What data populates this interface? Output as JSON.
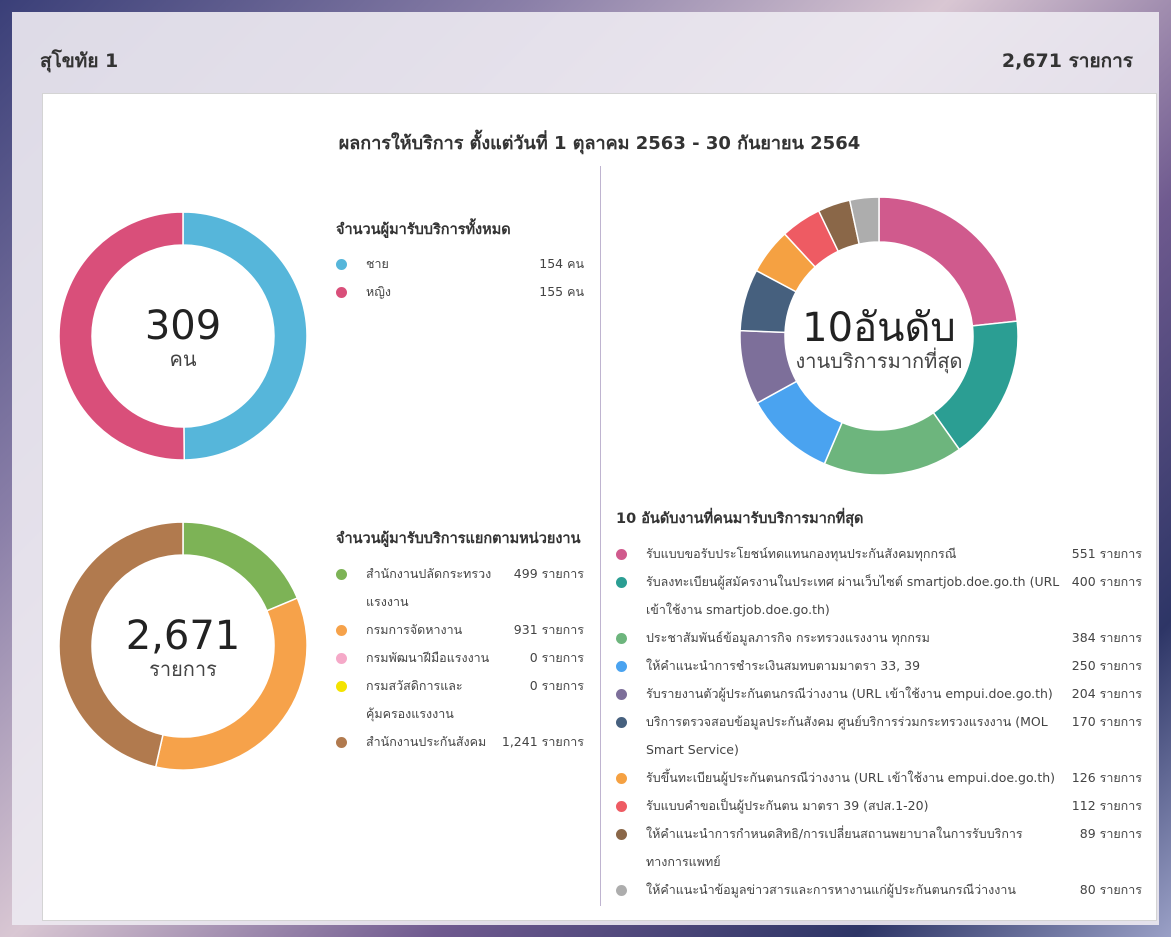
{
  "header": {
    "title": "สุโขทัย 1",
    "total": "2,671 รายการ"
  },
  "main_title": "ผลการให้บริการ ตั้งแต่วันที่ 1 ตุลาคม 2563 - 30 กันยายน 2564",
  "gender_chart": {
    "center_value": "309",
    "center_unit": "คน",
    "section_title": "จำนวนผู้มารับบริการทั้งหมด",
    "items": [
      {
        "label": "ชาย",
        "value": 154,
        "value_text": "154 คน",
        "color": "#56b6da"
      },
      {
        "label": "หญิง",
        "value": 155,
        "value_text": "155 คน",
        "color": "#d94f7a"
      }
    ]
  },
  "agency_chart": {
    "center_value": "2,671",
    "center_unit": "รายการ",
    "section_title": "จำนวนผู้มารับบริการแยกตามหน่วยงาน",
    "items": [
      {
        "label": "สำนักงานปลัดกระทรวงแรงงาน",
        "value": 499,
        "value_text": "499 รายการ",
        "color": "#7db356"
      },
      {
        "label": "กรมการจัดหางาน",
        "value": 931,
        "value_text": "931 รายการ",
        "color": "#f6a24a"
      },
      {
        "label": "กรมพัฒนาฝีมือแรงงาน",
        "value": 0,
        "value_text": "0 รายการ",
        "color": "#f5a9c8"
      },
      {
        "label": "กรมสวัสดิการและคุ้มครองแรงงาน",
        "value": 0,
        "value_text": "0 รายการ",
        "color": "#f4e300"
      },
      {
        "label": "สำนักงานประกันสังคม",
        "value": 1241,
        "value_text": "1,241 รายการ",
        "color": "#b17a4e"
      }
    ]
  },
  "top10_chart": {
    "center_value": "10อันดับ",
    "center_unit": "งานบริการมากที่สุด",
    "section_title": "10 อันดับงานที่คนมารับบริการมากที่สุด",
    "items": [
      {
        "label": "รับแบบขอรับประโยชน์ทดแทนกองทุนประกันสังคมทุกกรณี",
        "value": 551,
        "value_text": "551 รายการ",
        "color": "#d05a8d"
      },
      {
        "label": "รับลงทะเบียนผู้สมัครงานในประเทศ ผ่านเว็บไซต์ smartjob.doe.go.th (URL เข้าใช้งาน smartjob.doe.go.th)",
        "value": 400,
        "value_text": "400 รายการ",
        "color": "#2b9e93"
      },
      {
        "label": "ประชาสัมพันธ์ข้อมูลภารกิจ กระทรวงแรงงาน ทุกกรม",
        "value": 384,
        "value_text": "384 รายการ",
        "color": "#6db57d"
      },
      {
        "label": "ให้คำแนะนำการชำระเงินสมทบตามมาตรา 33, 39",
        "value": 250,
        "value_text": "250 รายการ",
        "color": "#4aa3f0"
      },
      {
        "label": "รับรายงานตัวผู้ประกันตนกรณีว่างงาน (URL เข้าใช้งาน empui.doe.go.th)",
        "value": 204,
        "value_text": "204 รายการ",
        "color": "#7d6f9a"
      },
      {
        "label": "บริการตรวจสอบข้อมูลประกันสังคม ศูนย์บริการร่วมกระทรวงแรงงาน (MOL Smart Service)",
        "value": 170,
        "value_text": "170 รายการ",
        "color": "#46607e"
      },
      {
        "label": "รับขึ้นทะเบียนผู้ประกันตนกรณีว่างงาน (URL เข้าใช้งาน empui.doe.go.th)",
        "value": 126,
        "value_text": "126 รายการ",
        "color": "#f5a142"
      },
      {
        "label": "รับแบบคำขอเป็นผู้ประกันตน มาตรา 39 (สปส.1-20)",
        "value": 112,
        "value_text": "112 รายการ",
        "color": "#ee5b63"
      },
      {
        "label": "ให้คำแนะนำการกำหนดสิทธิ/การเปลี่ยนสถานพยาบาลในการรับบริการทางการแพทย์",
        "value": 89,
        "value_text": "89 รายการ",
        "color": "#8a6748"
      },
      {
        "label": "ให้คำแนะนำข้อมูลข่าวสารและการหางานแก่ผู้ประกันตนกรณีว่างงาน",
        "value": 80,
        "value_text": "80 รายการ",
        "color": "#adadad"
      }
    ]
  }
}
